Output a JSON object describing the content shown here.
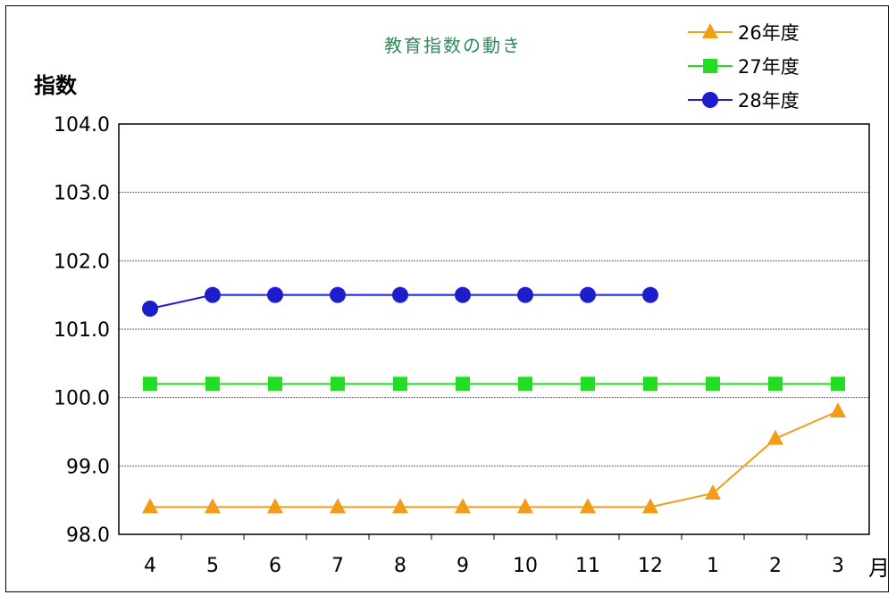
{
  "chart_data": {
    "type": "line",
    "title": "教育指数の動き",
    "ylabel": "指数",
    "xlabel": "月",
    "categories": [
      "4",
      "5",
      "6",
      "7",
      "8",
      "9",
      "10",
      "11",
      "12",
      "1",
      "2",
      "3"
    ],
    "ylim": [
      98.0,
      104.0
    ],
    "yticks": [
      "98.0",
      "99.0",
      "100.0",
      "101.0",
      "102.0",
      "103.0",
      "104.0"
    ],
    "grid": true,
    "legend_position": "top-right",
    "series": [
      {
        "name": "26年度",
        "color": "#f39c1a",
        "marker": "triangle",
        "values": [
          98.4,
          98.4,
          98.4,
          98.4,
          98.4,
          98.4,
          98.4,
          98.4,
          98.4,
          98.6,
          99.4,
          99.8
        ]
      },
      {
        "name": "27年度",
        "color": "#22dd22",
        "marker": "square",
        "values": [
          100.2,
          100.2,
          100.2,
          100.2,
          100.2,
          100.2,
          100.2,
          100.2,
          100.2,
          100.2,
          100.2,
          100.2
        ]
      },
      {
        "name": "28年度",
        "color": "#1d1dcc",
        "marker": "circle",
        "values": [
          101.3,
          101.5,
          101.5,
          101.5,
          101.5,
          101.5,
          101.5,
          101.5,
          101.5,
          null,
          null,
          null
        ]
      }
    ]
  },
  "colors": {
    "title": "#2e8b57",
    "axis": "#000000",
    "gridline": "#666666"
  }
}
